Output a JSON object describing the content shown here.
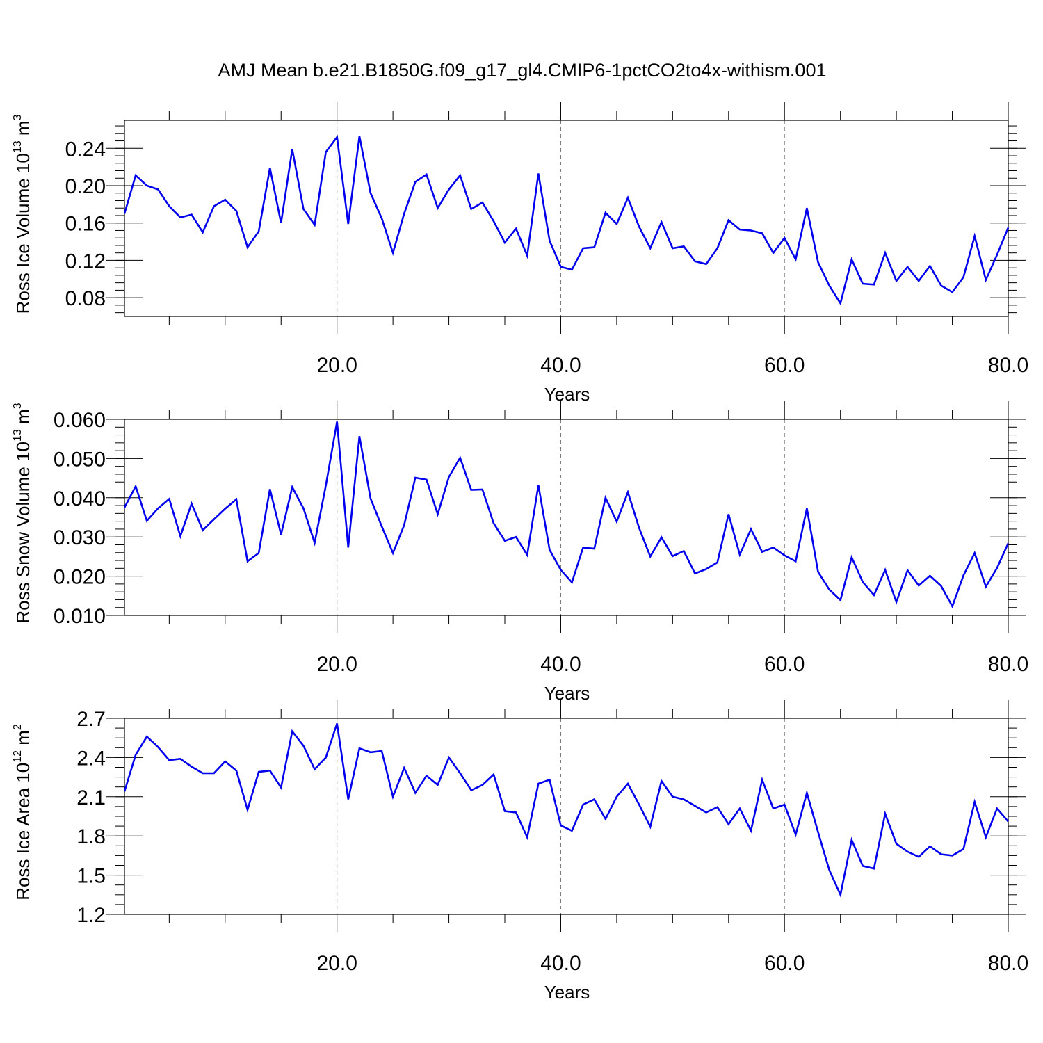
{
  "figure_title": "AMJ Mean b.e21.B1850G.f09_g17_gl4.CMIP6-1pctCO2to4x-withism.001",
  "line_color": "#0000ee",
  "chart_data": [
    {
      "type": "line",
      "title": "",
      "xlabel": "Years",
      "ylabel": {
        "base": "Ross Ice Volume 10",
        "exp": "13",
        "unit": " m",
        "unit_exp": "3"
      },
      "xlim": [
        1,
        80
      ],
      "ylim": [
        0.06,
        0.27
      ],
      "x_tick_values": [
        20,
        40,
        60,
        80
      ],
      "x_tick_labels": [
        "20.0",
        "40.0",
        "60.0",
        "80.0"
      ],
      "y_tick_values": [
        0.08,
        0.12,
        0.16,
        0.2,
        0.24
      ],
      "y_tick_labels": [
        "0.08",
        "0.12",
        "0.16",
        "0.20",
        "0.24"
      ],
      "y_minor_step": 0.008,
      "grid": "vertical dashed at major x ticks",
      "series": [
        {
          "values": [
            0.17,
            0.211,
            0.2,
            0.196,
            0.178,
            0.166,
            0.169,
            0.15,
            0.178,
            0.185,
            0.173,
            0.134,
            0.151,
            0.219,
            0.16,
            0.239,
            0.175,
            0.158,
            0.236,
            0.252,
            0.159,
            0.253,
            0.192,
            0.165,
            0.128,
            0.17,
            0.204,
            0.212,
            0.176,
            0.196,
            0.211,
            0.175,
            0.182,
            0.162,
            0.139,
            0.154,
            0.125,
            0.213,
            0.141,
            0.113,
            0.11,
            0.133,
            0.134,
            0.171,
            0.159,
            0.187,
            0.156,
            0.133,
            0.161,
            0.133,
            0.135,
            0.119,
            0.116,
            0.133,
            0.163,
            0.153,
            0.152,
            0.149,
            0.128,
            0.144,
            0.121,
            0.176,
            0.118,
            0.093,
            0.074,
            0.121,
            0.095,
            0.094,
            0.128,
            0.098,
            0.113,
            0.098,
            0.114,
            0.093,
            0.086,
            0.102,
            0.146,
            0.099,
            0.126,
            0.155
          ]
        }
      ]
    },
    {
      "type": "line",
      "title": "",
      "xlabel": "Years",
      "ylabel": {
        "base": "Ross Snow Volume 10",
        "exp": "13",
        "unit": " m",
        "unit_exp": "3"
      },
      "xlim": [
        1,
        80
      ],
      "ylim": [
        0.01,
        0.06
      ],
      "x_tick_values": [
        20,
        40,
        60,
        80
      ],
      "x_tick_labels": [
        "20.0",
        "40.0",
        "60.0",
        "80.0"
      ],
      "y_tick_values": [
        0.01,
        0.02,
        0.03,
        0.04,
        0.05,
        0.06
      ],
      "y_tick_labels": [
        "0.010",
        "0.020",
        "0.030",
        "0.040",
        "0.050",
        "0.060"
      ],
      "y_minor_step": 0.002,
      "grid": "vertical dashed at major x ticks",
      "series": [
        {
          "values": [
            0.0375,
            0.0429,
            0.0341,
            0.0373,
            0.0397,
            0.0302,
            0.0385,
            0.0317,
            0.0345,
            0.0372,
            0.0396,
            0.0238,
            0.0259,
            0.0422,
            0.0306,
            0.0427,
            0.0373,
            0.0285,
            0.0431,
            0.0594,
            0.0273,
            0.0557,
            0.0398,
            0.0327,
            0.0259,
            0.033,
            0.0451,
            0.0446,
            0.0358,
            0.0453,
            0.0502,
            0.042,
            0.0421,
            0.0335,
            0.029,
            0.03,
            0.0254,
            0.0432,
            0.0267,
            0.0216,
            0.0184,
            0.0273,
            0.027,
            0.04,
            0.0339,
            0.0414,
            0.0323,
            0.025,
            0.0299,
            0.0251,
            0.0264,
            0.0207,
            0.0218,
            0.0235,
            0.0358,
            0.0255,
            0.032,
            0.0262,
            0.0273,
            0.0253,
            0.0238,
            0.0373,
            0.0211,
            0.0166,
            0.0139,
            0.0248,
            0.0185,
            0.0152,
            0.0216,
            0.0134,
            0.0215,
            0.0176,
            0.0201,
            0.0175,
            0.0123,
            0.0202,
            0.0259,
            0.0173,
            0.0221,
            0.0284
          ]
        }
      ]
    },
    {
      "type": "line",
      "title": "",
      "xlabel": "Years",
      "ylabel": {
        "base": "Ross Ice Area 10",
        "exp": "12",
        "unit": " m",
        "unit_exp": "2"
      },
      "xlim": [
        1,
        80
      ],
      "ylim": [
        1.2,
        2.7
      ],
      "x_tick_values": [
        20,
        40,
        60,
        80
      ],
      "x_tick_labels": [
        "20.0",
        "40.0",
        "60.0",
        "80.0"
      ],
      "y_tick_values": [
        1.2,
        1.5,
        1.8,
        2.1,
        2.4,
        2.7
      ],
      "y_tick_labels": [
        "1.2",
        "1.5",
        "1.8",
        "2.1",
        "2.4",
        "2.7"
      ],
      "y_minor_step": 0.075,
      "grid": "vertical dashed at major x ticks",
      "series": [
        {
          "values": [
            2.14,
            2.42,
            2.56,
            2.48,
            2.38,
            2.39,
            2.33,
            2.28,
            2.28,
            2.37,
            2.3,
            2.0,
            2.29,
            2.3,
            2.17,
            2.6,
            2.49,
            2.31,
            2.4,
            2.66,
            2.08,
            2.47,
            2.44,
            2.45,
            2.1,
            2.32,
            2.13,
            2.26,
            2.19,
            2.4,
            2.28,
            2.15,
            2.19,
            2.27,
            1.99,
            1.98,
            1.79,
            2.2,
            2.23,
            1.88,
            1.84,
            2.04,
            2.08,
            1.93,
            2.1,
            2.2,
            2.04,
            1.87,
            2.22,
            2.1,
            2.08,
            2.03,
            1.98,
            2.02,
            1.89,
            2.01,
            1.84,
            2.23,
            2.01,
            2.04,
            1.81,
            2.13,
            1.83,
            1.54,
            1.35,
            1.77,
            1.57,
            1.55,
            1.97,
            1.74,
            1.68,
            1.64,
            1.72,
            1.66,
            1.65,
            1.7,
            2.06,
            1.79,
            2.01,
            1.91
          ]
        }
      ]
    }
  ]
}
